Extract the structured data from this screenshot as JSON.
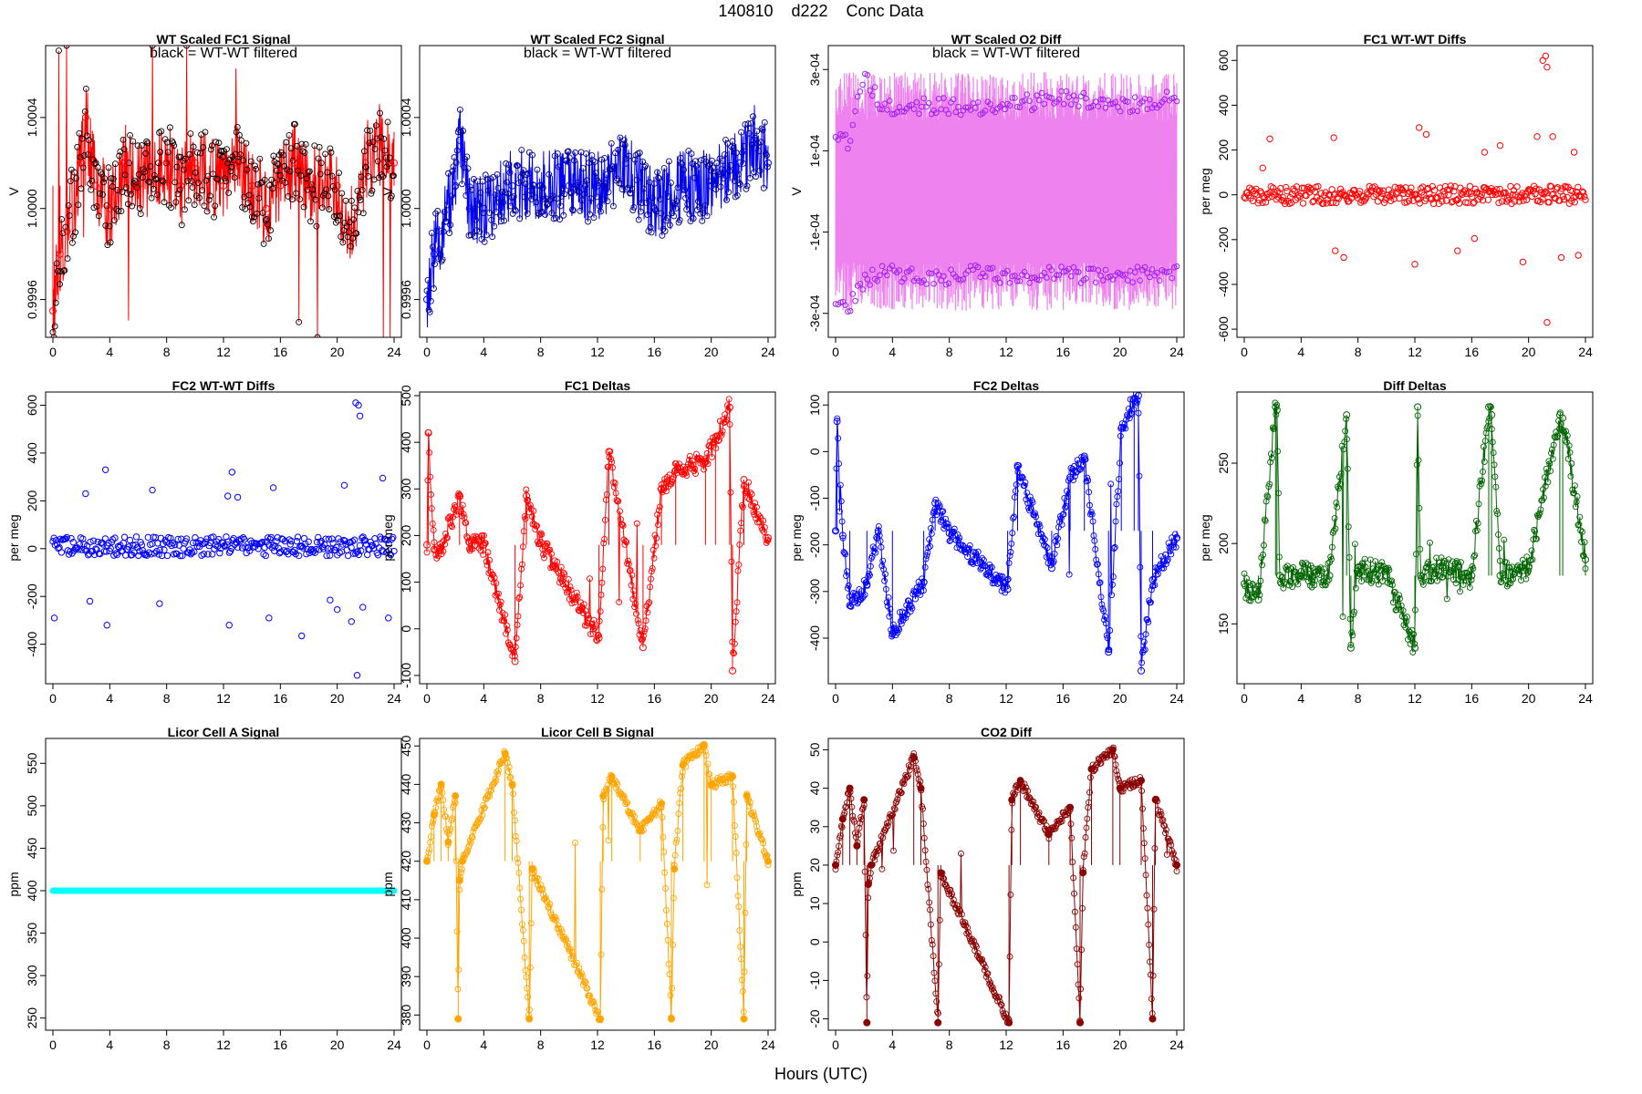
{
  "title": "140810    d222    Conc Data",
  "xlabel": "Hours (UTC)",
  "chart_data": [
    {
      "id": "fc1-signal",
      "type": "line",
      "title": "WT Scaled FC1 Signal",
      "subtitle": "black = WT-WT filtered",
      "ylabel": "V",
      "color": "#ff0000",
      "point_color": "#000000",
      "xlim": [
        0,
        24
      ],
      "ylim": [
        0.99945,
        1.0007
      ],
      "yticks": [
        0.9996,
        1.0,
        1.0004
      ],
      "ytick_labels": [
        "0.9996",
        "1.0000",
        "1.0004"
      ],
      "xticks": [
        0,
        4,
        8,
        12,
        16,
        20,
        24
      ],
      "base": 1.0001,
      "noise": 0.00018,
      "series": [
        {
          "x": [
            0,
            0.5,
            1,
            2,
            2.3,
            3,
            4,
            5,
            6,
            8,
            9,
            10,
            12,
            13,
            14,
            15,
            16,
            17,
            18,
            20,
            21,
            22,
            23,
            24
          ],
          "y": [
            0.99955,
            0.9998,
            0.9999,
            1.0002,
            1.0004,
            1.0001,
            1.0,
            1.0002,
            1.0001,
            1.0002,
            1.0001,
            1.0002,
            1.0001,
            1.0002,
            1.0001,
            1.0,
            1.0001,
            1.0002,
            1.0001,
            1.0001,
            0.9999,
            1.0002,
            1.0003,
            1.0002
          ]
        }
      ]
    },
    {
      "id": "fc2-signal",
      "type": "line",
      "title": "WT Scaled FC2 Signal",
      "subtitle": "black = WT-WT filtered",
      "ylabel": "V",
      "color": "#0000ff",
      "point_color": "#000088",
      "xlim": [
        0,
        24
      ],
      "ylim": [
        0.99945,
        1.0007
      ],
      "yticks": [
        0.9996,
        1.0,
        1.0004
      ],
      "ytick_labels": [
        "0.9996",
        "1.0000",
        "1.0004"
      ],
      "xticks": [
        0,
        4,
        8,
        12,
        16,
        20,
        24
      ],
      "noise": 0.00016,
      "series": [
        {
          "x": [
            0,
            0.5,
            1,
            2,
            2.3,
            3,
            4,
            6,
            8,
            10,
            12,
            14,
            16,
            18,
            20,
            22,
            23,
            24
          ],
          "y": [
            0.9996,
            0.9998,
            0.9999,
            1.0001,
            1.0003,
            1.0,
            1.0,
            1.0001,
            1.0001,
            1.0001,
            1.0001,
            1.0002,
            1.0,
            1.0001,
            1.0001,
            1.0002,
            1.0003,
            1.0002
          ]
        }
      ]
    },
    {
      "id": "o2-diff",
      "type": "line",
      "title": "WT Scaled O2 Diff",
      "subtitle": "black = WT-WT filtered",
      "ylabel": "V",
      "color": "#ee82ee",
      "point_color": "#a020f0",
      "xlim": [
        0,
        24
      ],
      "ylim": [
        -0.00035,
        0.00035
      ],
      "yticks": [
        -0.0003,
        -0.0001,
        0.0001,
        0.0003
      ],
      "ytick_labels": [
        "-3e-04",
        "-1e-04",
        "1e-04",
        "3e-04"
      ],
      "xticks": [
        0,
        4,
        8,
        12,
        16,
        20,
        24
      ],
      "levels": [
        0.00021,
        -0.00021
      ],
      "series": [
        {
          "name": "upper",
          "x": [
            0,
            1,
            2,
            3,
            4,
            6,
            8,
            10,
            12,
            14,
            16,
            18,
            20,
            22,
            24
          ],
          "y": [
            0.00013,
            0.00012,
            0.0003,
            0.00022,
            0.0002,
            0.00021,
            0.00021,
            0.0002,
            0.00022,
            0.00022,
            0.00023,
            0.00022,
            0.00021,
            0.00022,
            0.00023
          ]
        },
        {
          "name": "lower",
          "x": [
            0,
            1,
            2,
            3,
            4,
            6,
            8,
            10,
            12,
            14,
            16,
            18,
            20,
            22,
            24
          ],
          "y": [
            -0.00028,
            -0.00028,
            -0.00022,
            -0.0002,
            -0.0002,
            -0.00021,
            -0.00021,
            -0.0002,
            -0.00021,
            -0.00021,
            -0.0002,
            -0.00021,
            -0.00021,
            -0.0002,
            -0.0002
          ]
        }
      ]
    },
    {
      "id": "fc1-wtwt",
      "type": "scatter",
      "title": "FC1 WT-WT Diffs",
      "ylabel": "per meg",
      "color": "#ff0000",
      "xlim": [
        0,
        24
      ],
      "ylim": [
        -620,
        650
      ],
      "yticks": [
        -600,
        -400,
        -200,
        0,
        200,
        400,
        600
      ],
      "ytick_labels": [
        "-600",
        "-400",
        "-200",
        "0",
        "200",
        "400",
        "600"
      ],
      "xticks": [
        0,
        4,
        8,
        12,
        16,
        20,
        24
      ],
      "base": 0,
      "noise": 40,
      "outliers": [
        {
          "x": 1.3,
          "y": 120
        },
        {
          "x": 1.8,
          "y": 250
        },
        {
          "x": 6.3,
          "y": 255
        },
        {
          "x": 6.4,
          "y": -250
        },
        {
          "x": 7.0,
          "y": -280
        },
        {
          "x": 12.0,
          "y": -310
        },
        {
          "x": 12.3,
          "y": 300
        },
        {
          "x": 12.8,
          "y": 270
        },
        {
          "x": 15.0,
          "y": -250
        },
        {
          "x": 16.2,
          "y": -195
        },
        {
          "x": 16.9,
          "y": 190
        },
        {
          "x": 18.0,
          "y": 220
        },
        {
          "x": 19.6,
          "y": -300
        },
        {
          "x": 20.6,
          "y": 260
        },
        {
          "x": 21.0,
          "y": 600
        },
        {
          "x": 21.2,
          "y": 620
        },
        {
          "x": 21.3,
          "y": 570
        },
        {
          "x": 21.3,
          "y": -570
        },
        {
          "x": 21.7,
          "y": 260
        },
        {
          "x": 22.3,
          "y": -280
        },
        {
          "x": 23.2,
          "y": 190
        },
        {
          "x": 23.5,
          "y": -270
        }
      ]
    },
    {
      "id": "fc2-wtwt",
      "type": "scatter",
      "title": "FC2 WT-WT Diffs",
      "ylabel": "per meg",
      "color": "#0000ff",
      "xlim": [
        0,
        24
      ],
      "ylim": [
        -550,
        640
      ],
      "yticks": [
        -400,
        -200,
        0,
        200,
        400,
        600
      ],
      "ytick_labels": [
        "-400",
        "-200",
        "0",
        "200",
        "400",
        "600"
      ],
      "xticks": [
        0,
        4,
        8,
        12,
        16,
        20,
        24
      ],
      "base": 10,
      "noise": 40,
      "outliers": [
        {
          "x": 0.1,
          "y": -290
        },
        {
          "x": 2.3,
          "y": 230
        },
        {
          "x": 2.6,
          "y": -220
        },
        {
          "x": 3.8,
          "y": -320
        },
        {
          "x": 3.7,
          "y": 330
        },
        {
          "x": 7.0,
          "y": 245
        },
        {
          "x": 7.5,
          "y": -230
        },
        {
          "x": 12.3,
          "y": 220
        },
        {
          "x": 12.6,
          "y": 320
        },
        {
          "x": 13.0,
          "y": 215
        },
        {
          "x": 12.4,
          "y": -320
        },
        {
          "x": 15.2,
          "y": -290
        },
        {
          "x": 15.5,
          "y": 255
        },
        {
          "x": 17.5,
          "y": -365
        },
        {
          "x": 19.5,
          "y": -215
        },
        {
          "x": 20.0,
          "y": -255
        },
        {
          "x": 20.5,
          "y": 265
        },
        {
          "x": 21.0,
          "y": -305
        },
        {
          "x": 21.3,
          "y": 610
        },
        {
          "x": 21.5,
          "y": 600
        },
        {
          "x": 21.6,
          "y": 555
        },
        {
          "x": 21.4,
          "y": -530
        },
        {
          "x": 21.8,
          "y": -245
        },
        {
          "x": 23.2,
          "y": 295
        },
        {
          "x": 23.6,
          "y": -290
        }
      ]
    },
    {
      "id": "fc1-deltas",
      "type": "line",
      "title": "FC1 Deltas",
      "ylabel": "per meg",
      "color": "#ff0000",
      "xlim": [
        0,
        24
      ],
      "ylim": [
        -110,
        500
      ],
      "yticks": [
        -100,
        0,
        100,
        200,
        300,
        400,
        500
      ],
      "ytick_labels": [
        "-100",
        "0",
        "100",
        "200",
        "300",
        "400",
        "500"
      ],
      "xticks": [
        0,
        4,
        8,
        12,
        16,
        20,
        24
      ],
      "base": 180,
      "noise": 22,
      "series": [
        {
          "x": [
            0,
            0.1,
            0.5,
            1,
            2.3,
            3,
            4,
            6.2,
            7,
            8,
            12.1,
            12.8,
            15.2,
            16.5,
            17.5,
            19.6,
            20.3,
            21.3,
            21.5,
            22.3,
            24
          ],
          "y": [
            180,
            420,
            170,
            175,
            285,
            185,
            180,
            -70,
            285,
            185,
            -20,
            380,
            -40,
            300,
            340,
            360,
            405,
            475,
            -90,
            320,
            195
          ]
        }
      ]
    },
    {
      "id": "fc2-deltas",
      "type": "line",
      "title": "FC2 Deltas",
      "ylabel": "per meg",
      "color": "#0000ff",
      "xlim": [
        0,
        24
      ],
      "ylim": [
        -490,
        120
      ],
      "yticks": [
        -400,
        -300,
        -200,
        -100,
        0,
        100
      ],
      "ytick_labels": [
        "-400",
        "-300",
        "-200",
        "-100",
        "0",
        "100"
      ],
      "xticks": [
        0,
        4,
        8,
        12,
        16,
        20,
        24
      ],
      "base": -170,
      "noise": 20,
      "series": [
        {
          "x": [
            0,
            0.1,
            0.5,
            1,
            2.2,
            3,
            4,
            6.2,
            7,
            8,
            12.1,
            12.8,
            15.2,
            16.5,
            17.5,
            19.2,
            20.1,
            21.0,
            21.3,
            21.5,
            22.3,
            24
          ],
          "y": [
            -170,
            65,
            -180,
            -330,
            -285,
            -170,
            -390,
            -280,
            -110,
            -175,
            -295,
            -30,
            -250,
            -55,
            -10,
            -430,
            50,
            110,
            120,
            -470,
            -275,
            -185
          ]
        }
      ]
    },
    {
      "id": "diff-deltas",
      "type": "line",
      "title": "Diff Deltas",
      "ylabel": "per meg",
      "color": "#006400",
      "xlim": [
        0,
        24
      ],
      "ylim": [
        115,
        292
      ],
      "yticks": [
        150,
        200,
        250
      ],
      "ytick_labels": [
        "150",
        "200",
        "250"
      ],
      "xticks": [
        0,
        4,
        8,
        12,
        16,
        20,
        24
      ],
      "base": 180,
      "noise": 8,
      "series": [
        {
          "x": [
            0,
            1,
            2.2,
            2.3,
            2.5,
            4,
            6,
            7.2,
            7.5,
            8,
            10,
            12,
            12.2,
            12.4,
            14,
            16,
            17.2,
            17.4,
            18,
            20,
            22.2,
            22.4,
            24
          ],
          "y": [
            175,
            165,
            285,
            283,
            180,
            180,
            180,
            280,
            135,
            185,
            180,
            135,
            285,
            180,
            185,
            180,
            285,
            280,
            180,
            185,
            280,
            278,
            190
          ]
        }
      ]
    },
    {
      "id": "licor-a",
      "type": "line",
      "title": "Licor Cell A Signal",
      "ylabel": "ppm",
      "color": "#00ffff",
      "xlim": [
        0,
        24
      ],
      "ylim": [
        240,
        575
      ],
      "yticks": [
        250,
        300,
        350,
        400,
        450,
        500,
        550
      ],
      "ytick_labels": [
        "250",
        "300",
        "350",
        "400",
        "450",
        "500",
        "550"
      ],
      "xticks": [
        0,
        4,
        8,
        12,
        16,
        20,
        24
      ],
      "series": [
        {
          "x": [
            0,
            24
          ],
          "y": [
            400,
            400
          ]
        }
      ]
    },
    {
      "id": "licor-b",
      "type": "line",
      "title": "Licor Cell B Signal",
      "ylabel": "ppm",
      "color": "#ffa500",
      "xlim": [
        0,
        24
      ],
      "ylim": [
        377,
        451
      ],
      "yticks": [
        380,
        390,
        400,
        410,
        420,
        430,
        440,
        450
      ],
      "ytick_labels": [
        "380",
        "390",
        "400",
        "410",
        "420",
        "430",
        "440",
        "450"
      ],
      "xticks": [
        0,
        4,
        8,
        12,
        16,
        20,
        24
      ],
      "base": 420,
      "noise": 1.2,
      "series": [
        {
          "x": [
            0,
            0.5,
            1,
            1.5,
            2.0,
            2.2,
            2.3,
            2.5,
            5.5,
            6.0,
            7.2,
            7.4,
            12.2,
            12.4,
            13.0,
            15.0,
            16.5,
            17.2,
            17.4,
            18.0,
            19.5,
            20.0,
            21.5,
            22.3,
            22.5,
            24
          ],
          "y": [
            420,
            432,
            440,
            425,
            437,
            379,
            415,
            420,
            448,
            440,
            379,
            418,
            379,
            437,
            442,
            428,
            435,
            379,
            418,
            445,
            450,
            440,
            442,
            379,
            437,
            420
          ]
        }
      ]
    },
    {
      "id": "co2-diff",
      "type": "line",
      "title": "CO2 Diff",
      "ylabel": "ppm",
      "color": "#8b0000",
      "xlim": [
        0,
        24
      ],
      "ylim": [
        -22,
        52
      ],
      "yticks": [
        -20,
        -10,
        0,
        10,
        20,
        30,
        40,
        50
      ],
      "ytick_labels": [
        "-20",
        "-10",
        "0",
        "10",
        "20",
        "30",
        "40",
        "50"
      ],
      "xticks": [
        0,
        4,
        8,
        12,
        16,
        20,
        24
      ],
      "base": 20,
      "noise": 1.2,
      "series": [
        {
          "x": [
            0,
            0.5,
            1,
            1.5,
            2.0,
            2.2,
            2.3,
            2.5,
            5.5,
            6.0,
            7.2,
            7.4,
            12.2,
            12.4,
            13.0,
            15.0,
            16.5,
            17.2,
            17.4,
            18.0,
            19.5,
            20.0,
            21.5,
            22.3,
            22.5,
            24
          ],
          "y": [
            20,
            32,
            40,
            25,
            37,
            -21,
            15,
            20,
            48,
            40,
            -21,
            18,
            -21,
            37,
            42,
            28,
            35,
            -21,
            18,
            45,
            50,
            40,
            42,
            -20,
            37,
            20
          ]
        }
      ]
    }
  ]
}
